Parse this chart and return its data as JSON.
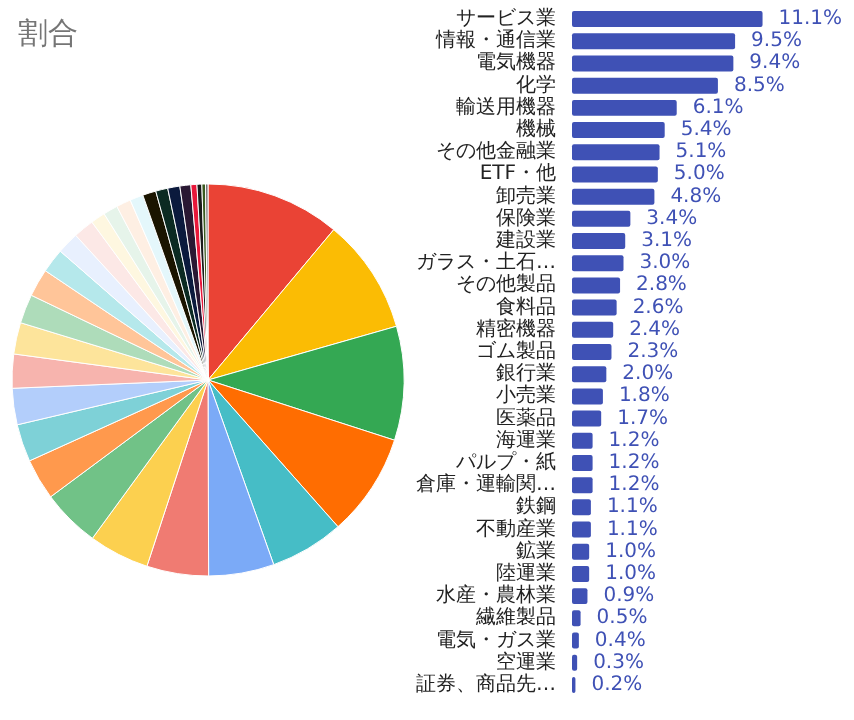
{
  "chart_data": [
    {
      "type": "pie",
      "title": "割合",
      "categories": [
        null,
        null,
        null,
        null,
        null,
        null,
        null,
        null,
        null,
        null,
        null,
        null,
        null,
        null,
        null,
        null,
        null,
        null,
        null,
        null,
        null,
        null,
        null,
        null,
        null,
        null,
        null,
        null,
        null,
        null,
        null
      ],
      "values": [
        11.1,
        9.5,
        9.4,
        8.5,
        6.1,
        5.4,
        5.1,
        5.0,
        4.8,
        3.4,
        3.1,
        3.0,
        2.8,
        2.6,
        2.4,
        2.3,
        2.0,
        1.8,
        1.7,
        1.2,
        1.2,
        1.2,
        1.1,
        1.1,
        1.0,
        1.0,
        0.9,
        0.5,
        0.4,
        0.3,
        0.2
      ],
      "colors": [
        "#ea4335",
        "#fbbc04",
        "#34a853",
        "#ff6d01",
        "#46bdc6",
        "#7baaf7",
        "#f07b72",
        "#fcd04f",
        "#71c287",
        "#ff994d",
        "#7ed1d7",
        "#b3cefb",
        "#f7b4ae",
        "#fde49b",
        "#aedcba",
        "#ffc599",
        "#b5e8eb",
        "#e8f0fe",
        "#fce8e6",
        "#fef7e0",
        "#e6f4ea",
        "#feefe3",
        "#e4f7fb",
        "#1a1400",
        "#0b2a22",
        "#0b1a3d",
        "#2a1833",
        "#e8173a",
        "#1a1a1a",
        "#3a5a20",
        "#6a6a6a"
      ]
    },
    {
      "type": "bar",
      "orientation": "horizontal",
      "color": "#3f51b5",
      "tick_labels": "y",
      "grid": false,
      "categories": [
        "サービス業",
        "情報・通信業",
        "電気機器",
        "化学",
        "輸送用機器",
        "機械",
        "その他金融業",
        "ETF・他",
        "卸売業",
        "保険業",
        "建設業",
        "ガラス・土石…",
        "その他製品",
        "食料品",
        "精密機器",
        "ゴム製品",
        "銀行業",
        "小売業",
        "医薬品",
        "海運業",
        "パルプ・紙",
        "倉庫・運輸関…",
        "鉄鋼",
        "不動産業",
        "鉱業",
        "陸運業",
        "水産・農林業",
        "繊維製品",
        "電気・ガス業",
        "空運業",
        "証券、商品先…"
      ],
      "values": [
        11.1,
        9.5,
        9.4,
        8.5,
        6.1,
        5.4,
        5.1,
        5.0,
        4.8,
        3.4,
        3.1,
        3.0,
        2.8,
        2.6,
        2.4,
        2.3,
        2.0,
        1.8,
        1.7,
        1.2,
        1.2,
        1.2,
        1.1,
        1.1,
        1.0,
        1.0,
        0.9,
        0.5,
        0.4,
        0.3,
        0.2
      ],
      "value_labels": [
        "11.1%",
        "9.5%",
        "9.4%",
        "8.5%",
        "6.1%",
        "5.4%",
        "5.1%",
        "5.0%",
        "4.8%",
        "3.4%",
        "3.1%",
        "3.0%",
        "2.8%",
        "2.6%",
        "2.4%",
        "2.3%",
        "2.0%",
        "1.8%",
        "1.7%",
        "1.2%",
        "1.2%",
        "1.2%",
        "1.1%",
        "1.1%",
        "1.0%",
        "1.0%",
        "0.9%",
        "0.5%",
        "0.4%",
        "0.3%",
        "0.2%"
      ]
    }
  ]
}
